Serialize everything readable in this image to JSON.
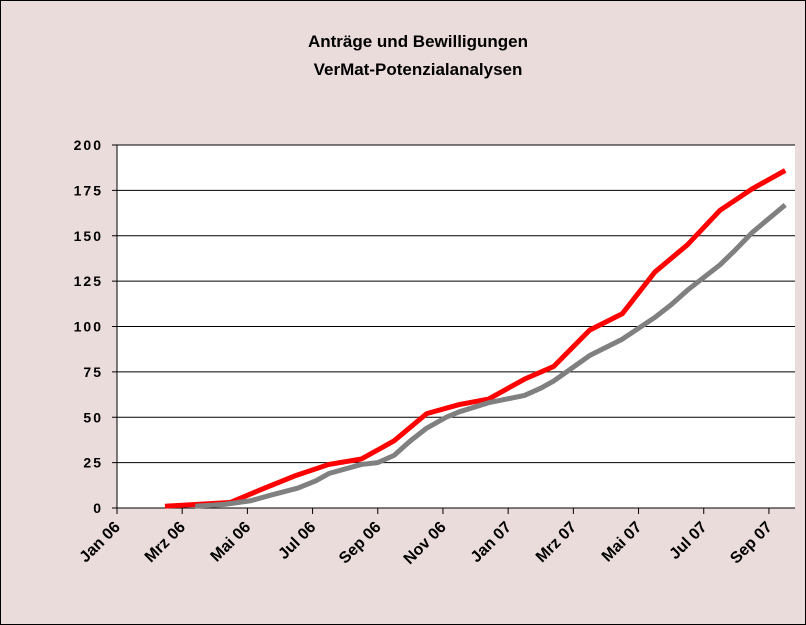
{
  "chart_data": {
    "type": "line",
    "title": "Anträge und Bewilligungen",
    "subtitle": "VerMat-Potenzialanalysen",
    "xlim": [
      0,
      20.8
    ],
    "xticks": [
      {
        "value": 0,
        "label": "Jan 06"
      },
      {
        "value": 2,
        "label": "Mrz 06"
      },
      {
        "value": 4,
        "label": "Mai 06"
      },
      {
        "value": 6,
        "label": "Jul 06"
      },
      {
        "value": 8,
        "label": "Sep 06"
      },
      {
        "value": 10,
        "label": "Nov 06"
      },
      {
        "value": 12,
        "label": "Jan 07"
      },
      {
        "value": 14,
        "label": "Mrz 07"
      },
      {
        "value": 16,
        "label": "Mai 07"
      },
      {
        "value": 18,
        "label": "Jul 07"
      },
      {
        "value": 20,
        "label": "Sep 07"
      }
    ],
    "ylim": [
      0,
      200
    ],
    "yticks": [
      0,
      25,
      50,
      75,
      100,
      125,
      150,
      175,
      200
    ],
    "grid": true,
    "series": [
      {
        "color": "#ff0000",
        "x": [
          1.47,
          3.47,
          4.4,
          5.5,
          6.5,
          7.5,
          8.5,
          9.5,
          10.5,
          11.4,
          12.5,
          13.4,
          14.5,
          15.5,
          16.5,
          17.5,
          18.5,
          19.5,
          20.5
        ],
        "values": [
          1,
          3,
          10,
          18,
          24,
          27,
          37,
          52,
          57,
          60,
          71,
          78,
          98,
          107,
          130,
          145,
          164,
          176,
          186
        ]
      },
      {
        "color": "#808080",
        "x": [
          2.4,
          3.3,
          4.1,
          4.7,
          5.55,
          6.1,
          6.5,
          7.5,
          8.0,
          8.5,
          9.0,
          9.5,
          10.1,
          10.5,
          11.4,
          12.5,
          13.0,
          13.4,
          14.5,
          15.5,
          16.5,
          17.0,
          17.5,
          18.5,
          18.96,
          19.5,
          20.5
        ],
        "values": [
          1,
          2,
          4,
          7,
          11,
          15,
          19,
          24,
          25,
          29,
          37,
          44,
          50,
          53,
          58,
          62,
          66,
          70,
          84,
          93,
          105,
          112,
          120,
          134,
          142,
          152,
          167
        ]
      }
    ]
  }
}
